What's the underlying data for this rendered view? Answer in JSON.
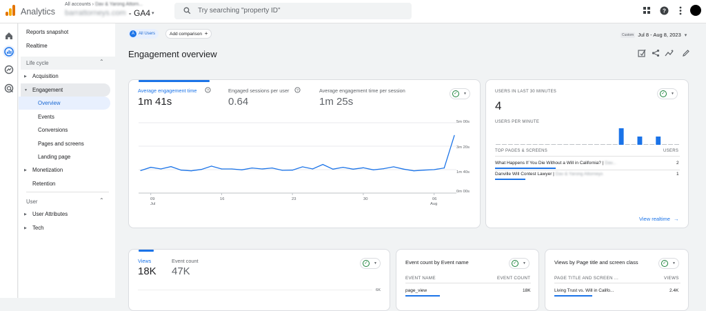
{
  "app": {
    "name": "Analytics",
    "account_crumb": "All accounts › ",
    "account_crumb_blurred": "Dav & Yarong Attorn...",
    "account_blurred": "barrattorneys.com",
    "property": "- GA4"
  },
  "search": {
    "placeholder": "Try searching \"property ID\""
  },
  "topbar_icons": [
    "apps-icon",
    "help-icon",
    "more-vert-icon",
    "avatar"
  ],
  "rail_icons": [
    "home-icon",
    "reports-icon",
    "explore-icon",
    "advertising-icon"
  ],
  "sidebar": {
    "top_items": [
      "Reports snapshot",
      "Realtime"
    ],
    "lifecycle": {
      "label": "Life cycle",
      "acquisition": "Acquisition",
      "engagement": "Engagement",
      "engagement_children": [
        "Overview",
        "Events",
        "Conversions",
        "Pages and screens",
        "Landing page"
      ],
      "monetization": "Monetization",
      "retention": "Retention"
    },
    "user": {
      "label": "User",
      "attributes": "User Attributes",
      "tech": "Tech"
    }
  },
  "filters": {
    "segment_letter": "A",
    "segment": "All Users",
    "add_comparison": "Add comparison",
    "add_icon": "+"
  },
  "date": {
    "custom": "Custom",
    "range": "Jul 8 - Aug 8, 2023"
  },
  "page": {
    "title": "Engagement overview"
  },
  "engagement_card": {
    "metrics": [
      {
        "label": "Average engagement time",
        "value": "1m 41s"
      },
      {
        "label": "Engaged sessions per user",
        "value": "0.64"
      },
      {
        "label": "Average engagement time per session",
        "value": "1m 25s"
      }
    ],
    "y_ticks": [
      "5m 00s",
      "3m 20s",
      "1m 40s",
      "0m 00s"
    ],
    "x_ticks": [
      {
        "day": "09",
        "month": "Jul"
      },
      {
        "day": "16",
        "month": ""
      },
      {
        "day": "23",
        "month": ""
      },
      {
        "day": "30",
        "month": ""
      },
      {
        "day": "06",
        "month": "Aug"
      }
    ]
  },
  "chart_data": {
    "type": "line",
    "title": "",
    "xlabel": "",
    "ylabel": "",
    "x": [
      "Jul 8",
      "Jul 9",
      "Jul 10",
      "Jul 11",
      "Jul 12",
      "Jul 13",
      "Jul 14",
      "Jul 15",
      "Jul 16",
      "Jul 17",
      "Jul 18",
      "Jul 19",
      "Jul 20",
      "Jul 21",
      "Jul 22",
      "Jul 23",
      "Jul 24",
      "Jul 25",
      "Jul 26",
      "Jul 27",
      "Jul 28",
      "Jul 29",
      "Jul 30",
      "Jul 31",
      "Aug 1",
      "Aug 2",
      "Aug 3",
      "Aug 4",
      "Aug 5",
      "Aug 6",
      "Aug 7",
      "Aug 8"
    ],
    "series": [
      {
        "name": "Average engagement time",
        "unit": "seconds",
        "values": [
          96,
          110,
          103,
          113,
          98,
          95,
          101,
          115,
          103,
          103,
          99,
          107,
          103,
          107,
          97,
          98,
          112,
          103,
          122,
          102,
          110,
          102,
          108,
          99,
          104,
          112,
          102,
          95,
          98,
          100,
          107,
          246
        ]
      }
    ],
    "ylim": [
      0,
      300
    ]
  },
  "realtime_card": {
    "title": "USERS IN LAST 30 MINUTES",
    "count": "4",
    "per_minute_label": "USERS PER MINUTE",
    "per_minute_values": [
      0,
      0,
      0,
      0,
      0,
      0,
      0,
      0,
      0,
      0,
      0,
      0,
      0,
      0,
      0,
      0,
      0,
      0,
      0,
      0,
      2,
      0,
      0,
      1,
      0,
      0,
      1,
      0,
      0,
      0
    ],
    "col_page": "TOP PAGES & SCREENS",
    "col_users": "USERS",
    "rows": [
      {
        "page": "What Happens If You Die Without a Will in California? | ",
        "page_blurred": "Dav...",
        "users": "2",
        "bar": 1.0
      },
      {
        "page": "Danville Will Contest Lawyer | ",
        "page_blurred": "Dav & Yarong Attorneys",
        "users": "1",
        "bar": 0.5
      }
    ],
    "link": "View realtime",
    "link_icon": "→"
  },
  "views_card": {
    "tabs": [
      {
        "label": "Views",
        "value": "18K"
      },
      {
        "label": "Event count",
        "value": "47K"
      }
    ],
    "y_top": "6K"
  },
  "event_card": {
    "title": "Event count by Event name",
    "col1": "EVENT NAME",
    "col2": "EVENT COUNT",
    "rows": [
      {
        "name": "page_view",
        "count": "18K",
        "bar": 1.0
      }
    ]
  },
  "page_card": {
    "title": "Views by Page title and screen class",
    "col1": "PAGE TITLE AND SCREEN ...",
    "col2": "VIEWS",
    "rows": [
      {
        "name": "Living Trust vs. Will in Califo...",
        "count": "2.4K",
        "bar": 1.0
      }
    ]
  }
}
